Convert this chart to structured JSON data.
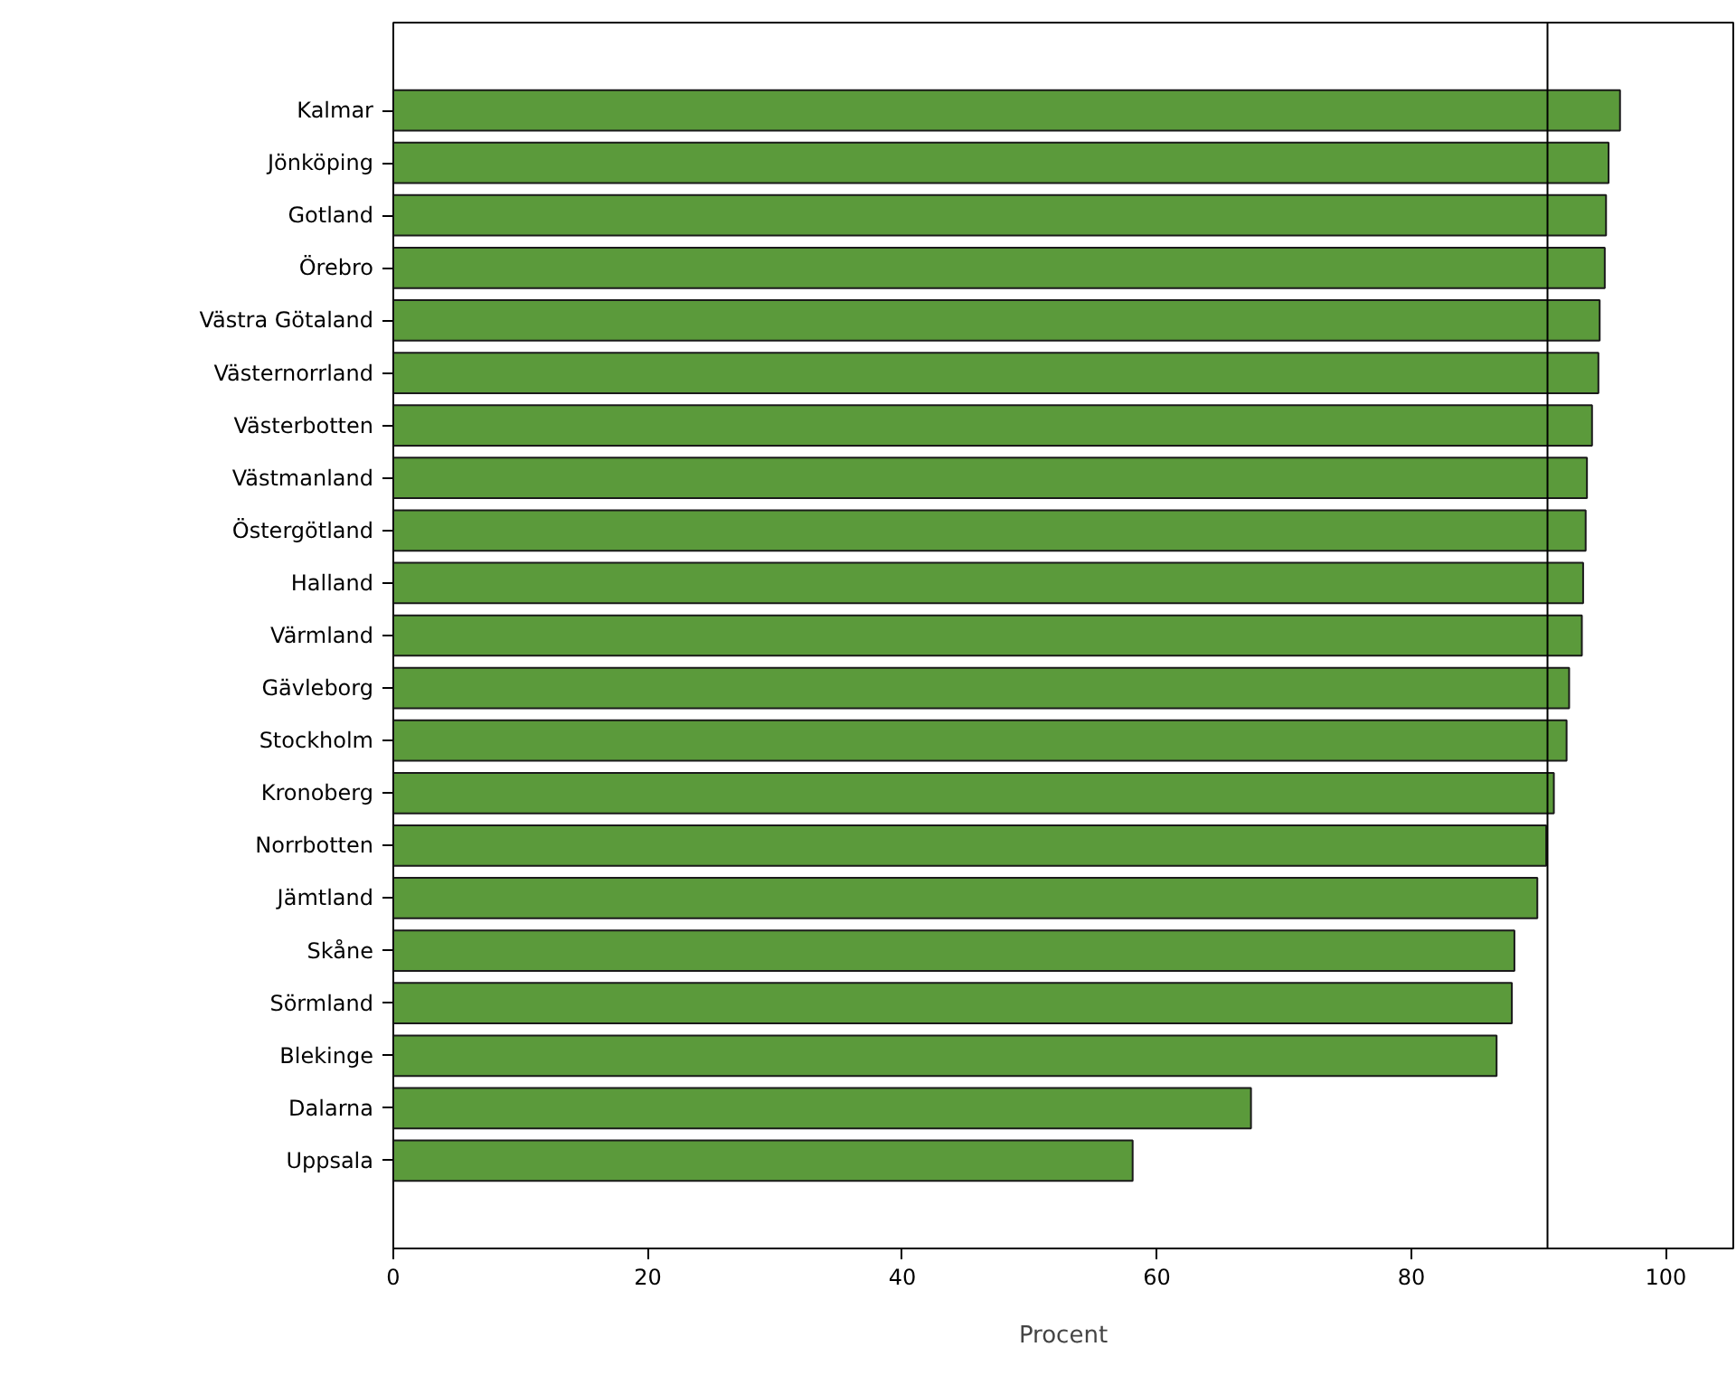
{
  "chart_data": {
    "type": "bar",
    "orientation": "horizontal",
    "xlabel": "Procent",
    "categories": [
      "Kalmar",
      "Jönköping",
      "Gotland",
      "Örebro",
      "Västra Götaland",
      "Västernorrland",
      "Västerbotten",
      "Västmanland",
      "Östergötland",
      "Halland",
      "Värmland",
      "Gävleborg",
      "Stockholm",
      "Kronoberg",
      "Norrbotten",
      "Jämtland",
      "Skåne",
      "Sörmland",
      "Blekinge",
      "Dalarna",
      "Uppsala"
    ],
    "values": [
      96.4,
      95.5,
      95.3,
      95.2,
      94.8,
      94.7,
      94.2,
      93.8,
      93.7,
      93.5,
      93.4,
      92.4,
      92.2,
      91.2,
      90.6,
      89.9,
      88.1,
      87.9,
      86.7,
      67.4,
      58.1
    ],
    "color": "#5b9a3b",
    "xlim": [
      0,
      105.3
    ],
    "xticks": [
      0,
      20,
      40,
      60,
      80,
      100
    ],
    "grid": false,
    "ref_lines": [
      {
        "axis": "x",
        "value": 90.7,
        "color": "#000000"
      }
    ]
  }
}
